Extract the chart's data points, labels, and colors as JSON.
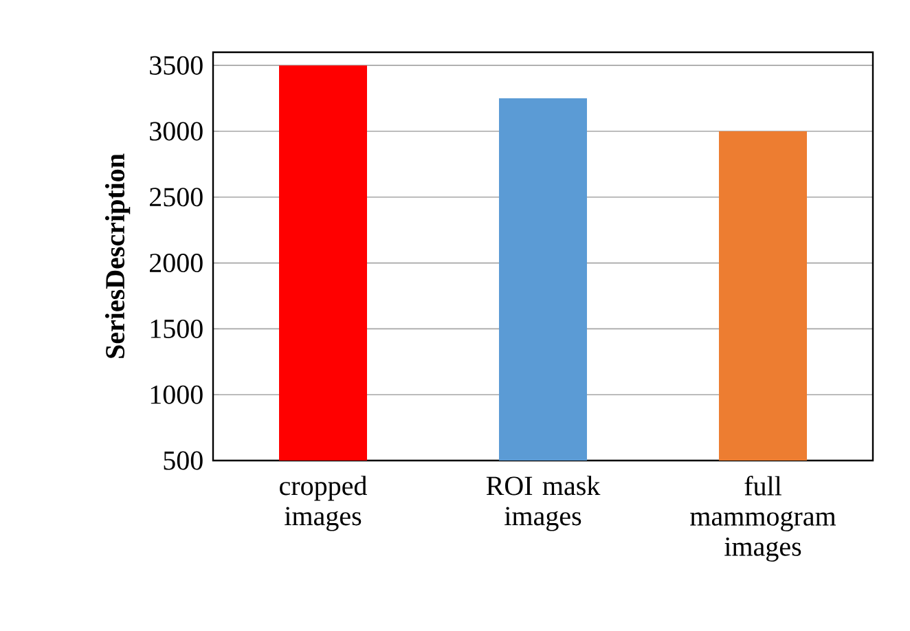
{
  "chart_data": {
    "type": "bar",
    "ylabel": "SeriesDescription",
    "categories": [
      "cropped images",
      "ROI mask images",
      "full mammogram images"
    ],
    "values": [
      3500,
      3250,
      3000
    ],
    "colors": [
      "#ff0000",
      "#5b9bd5",
      "#ed7d31"
    ],
    "ylim": [
      500,
      3600
    ],
    "yticks": [
      500,
      1000,
      1500,
      2000,
      2500,
      3000,
      3500
    ],
    "grid": "y"
  }
}
